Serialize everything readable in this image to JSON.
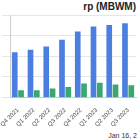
{
  "chart_data": {
    "type": "bar",
    "title": "rp (MBWM)",
    "date": "Jan 16, 2",
    "categories": [
      "Q4 2021",
      "Q1 2022",
      "Q2 2022",
      "Q3 2022",
      "Q4 2022",
      "Q1 2023",
      "Q2 2023",
      "Q3 2023"
    ],
    "series": [
      {
        "color": "#4a7fe0",
        "values": [
          55,
          58,
          62,
          70,
          80,
          86,
          88,
          90
        ]
      },
      {
        "color": "#3aa76d",
        "values": [
          9,
          9,
          11,
          13,
          17,
          18,
          16,
          15
        ]
      }
    ],
    "ylim": [
      0,
      100
    ],
    "yticks": [
      0,
      25,
      50,
      75,
      100
    ],
    "grid": true,
    "tick_labels": "x"
  }
}
